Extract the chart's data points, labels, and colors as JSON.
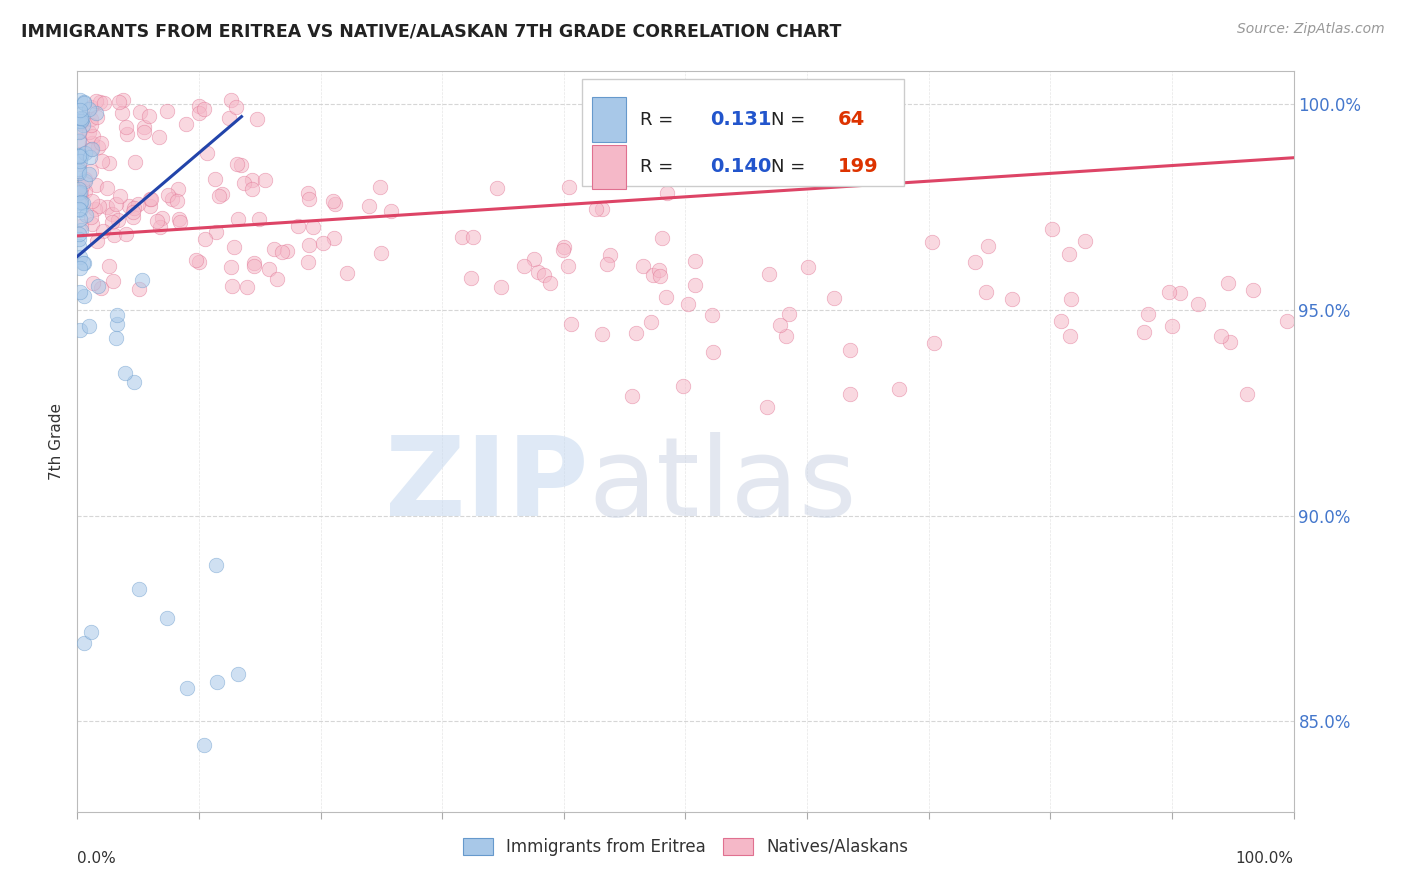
{
  "title": "IMMIGRANTS FROM ERITREA VS NATIVE/ALASKAN 7TH GRADE CORRELATION CHART",
  "source": "Source: ZipAtlas.com",
  "ylabel": "7th Grade",
  "yaxis_values": [
    0.85,
    0.9,
    0.95,
    1.0
  ],
  "legend_entries": [
    {
      "label": "Immigrants from Eritrea",
      "color": "#a8c8e8",
      "edge_color": "#6699cc",
      "R": "0.131",
      "N": "64"
    },
    {
      "label": "Natives/Alaskans",
      "color": "#f5b8c8",
      "edge_color": "#e07090",
      "R": "0.140",
      "N": "199"
    }
  ],
  "blue_line_color": "#2244aa",
  "pink_line_color": "#dd4466",
  "background_color": "#ffffff",
  "grid_color": "#cccccc",
  "xlim": [
    0.0,
    1.0
  ],
  "ylim": [
    0.828,
    1.008
  ]
}
